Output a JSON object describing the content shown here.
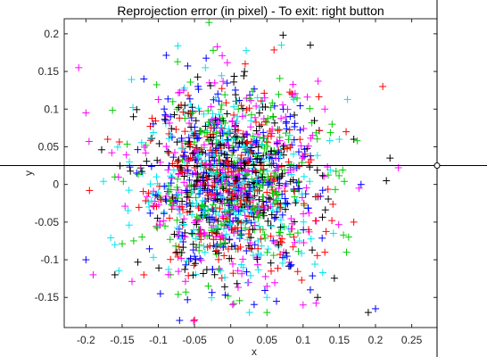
{
  "chart_data": {
    "type": "scatter",
    "title": "Reprojection error (in pixel) - To exit: right button",
    "xlabel": "x",
    "ylabel": "y",
    "xlim": [
      -0.23,
      0.285
    ],
    "ylim": [
      -0.19,
      0.22
    ],
    "xticks": [
      -0.2,
      -0.15,
      -0.1,
      -0.05,
      0,
      0.05,
      0.1,
      0.15,
      0.2,
      0.25
    ],
    "xtick_labels": [
      "-0.2",
      "-0.15",
      "-0.1",
      "-0.05",
      "0",
      "0.05",
      "0.1",
      "0.15",
      "0.2",
      "0.25"
    ],
    "yticks": [
      -0.15,
      -0.1,
      -0.05,
      0,
      0.05,
      0.1,
      0.15,
      0.2
    ],
    "ytick_labels": [
      "-0.15",
      "-0.1",
      "-0.05",
      "0",
      "0.05",
      "0.1",
      "0.15",
      "0.2"
    ],
    "marker": "+",
    "grid": false,
    "crosshair": {
      "x": 0.285,
      "y": 0.025
    },
    "series": [
      {
        "color": "#ff0000",
        "spread": 0.06,
        "points": [
          [
            0.21,
            0.13
          ],
          [
            -0.17,
            0.06
          ],
          [
            0.13,
            -0.09
          ],
          [
            -0.05,
            -0.18
          ],
          [
            0.17,
            -0.05
          ],
          [
            0.02,
            0.16
          ],
          [
            -0.12,
            -0.12
          ],
          [
            0.08,
            0.03
          ]
        ]
      },
      {
        "color": "#00cc00",
        "spread": 0.06,
        "points": [
          [
            -0.03,
            0.215
          ],
          [
            0.05,
            -0.17
          ],
          [
            0.14,
            0.08
          ],
          [
            -0.16,
            0.01
          ],
          [
            0.16,
            -0.09
          ],
          [
            -0.08,
            0.11
          ]
        ]
      },
      {
        "color": "#0000ff",
        "spread": 0.06,
        "points": [
          [
            0.2,
            -0.165
          ],
          [
            -0.2,
            -0.1
          ],
          [
            0.18,
            0.0
          ],
          [
            -0.12,
            0.14
          ],
          [
            0.11,
            -0.14
          ]
        ]
      },
      {
        "color": "#00e5ee",
        "spread": 0.065,
        "points": [
          [
            0.07,
            0.185
          ],
          [
            -0.16,
            -0.08
          ],
          [
            0.15,
            0.06
          ],
          [
            -0.14,
            0.03
          ],
          [
            0.05,
            -0.15
          ]
        ]
      },
      {
        "color": "#ff00ff",
        "spread": 0.065,
        "points": [
          [
            -0.21,
            0.155
          ],
          [
            -0.2,
            0.095
          ],
          [
            -0.19,
            -0.12
          ],
          [
            0.1,
            -0.16
          ],
          [
            0.13,
            0.1
          ]
        ]
      },
      {
        "color": "#000000",
        "spread": 0.06,
        "points": [
          [
            0.11,
            0.185
          ],
          [
            0.22,
            0.035
          ],
          [
            0.19,
            -0.17
          ],
          [
            0.12,
            -0.15
          ],
          [
            -0.16,
            -0.12
          ],
          [
            0.17,
            0.06
          ]
        ]
      }
    ]
  }
}
